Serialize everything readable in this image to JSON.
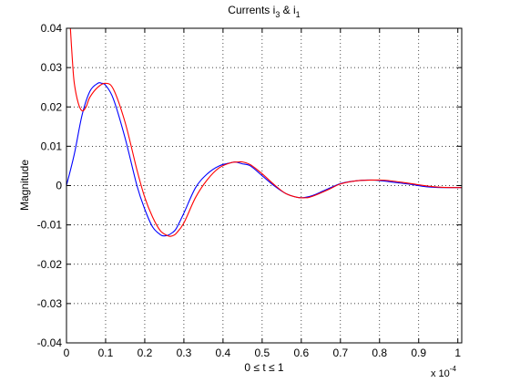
{
  "chart_data": {
    "type": "line",
    "title": {
      "main": "Currents i",
      "sub1": "3",
      "mid": " & i",
      "sub2": "1"
    },
    "xlabel": "0 ≤ t ≤ 1",
    "ylabel": "Magnitude",
    "x_multiplier": {
      "base": "x 10",
      "exponent": "-4"
    },
    "xlim": [
      0,
      1.01
    ],
    "ylim": [
      -0.04,
      0.04
    ],
    "xticks": [
      0,
      0.1,
      0.2,
      0.3,
      0.4,
      0.5,
      0.6,
      0.7,
      0.8,
      0.9,
      1
    ],
    "xtick_labels": [
      "0",
      "0.1",
      "0.2",
      "0.3",
      "0.4",
      "0.5",
      "0.6",
      "0.7",
      "0.8",
      "0.9",
      "1"
    ],
    "yticks": [
      -0.04,
      -0.03,
      -0.02,
      -0.01,
      0,
      0.01,
      0.02,
      0.03,
      0.04
    ],
    "ytick_labels": [
      "-0.04",
      "-0.03",
      "-0.02",
      "-0.01",
      "0",
      "0.01",
      "0.02",
      "0.03",
      "0.04"
    ],
    "grid": true,
    "series": [
      {
        "color": "#0000ff",
        "x": [
          0,
          0.02,
          0.04,
          0.06,
          0.08,
          0.09,
          0.1,
          0.12,
          0.15,
          0.18,
          0.2,
          0.22,
          0.24,
          0.25,
          0.26,
          0.27,
          0.28,
          0.3,
          0.33,
          0.36,
          0.39,
          0.42,
          0.43,
          0.44,
          0.45,
          0.47,
          0.5,
          0.53,
          0.56,
          0.59,
          0.61,
          0.63,
          0.66,
          0.7,
          0.74,
          0.77,
          0.8,
          0.84,
          0.88,
          0.92,
          0.96,
          1.0,
          1.01
        ],
        "y": [
          0,
          0.008,
          0.018,
          0.024,
          0.026,
          0.026,
          0.0255,
          0.022,
          0.012,
          0.0,
          -0.006,
          -0.0105,
          -0.0125,
          -0.0128,
          -0.0126,
          -0.012,
          -0.011,
          -0.007,
          -0.0005,
          0.003,
          0.005,
          0.0058,
          0.006,
          0.0058,
          0.0055,
          0.005,
          0.0025,
          0.0,
          -0.002,
          -0.003,
          -0.003,
          -0.0025,
          -0.0012,
          0.0005,
          0.0012,
          0.0014,
          0.0013,
          0.0008,
          0.0003,
          -0.0003,
          -0.0005,
          -0.0005,
          -0.0005
        ]
      },
      {
        "color": "#ff0000",
        "x": [
          0.01,
          0.015,
          0.02,
          0.03,
          0.04,
          0.05,
          0.06,
          0.08,
          0.1,
          0.12,
          0.15,
          0.18,
          0.2,
          0.22,
          0.24,
          0.26,
          0.27,
          0.28,
          0.3,
          0.33,
          0.36,
          0.39,
          0.42,
          0.44,
          0.45,
          0.47,
          0.5,
          0.53,
          0.56,
          0.59,
          0.61,
          0.62,
          0.64,
          0.67,
          0.7,
          0.74,
          0.78,
          0.8,
          0.82,
          0.86,
          0.9,
          0.94,
          0.98,
          1.01
        ],
        "y": [
          0.04,
          0.032,
          0.026,
          0.021,
          0.019,
          0.02,
          0.0225,
          0.025,
          0.026,
          0.0245,
          0.016,
          0.004,
          -0.003,
          -0.008,
          -0.0115,
          -0.0128,
          -0.0128,
          -0.0122,
          -0.0095,
          -0.003,
          0.0015,
          0.0045,
          0.0058,
          0.006,
          0.006,
          0.0053,
          0.003,
          0.0003,
          -0.002,
          -0.003,
          -0.0031,
          -0.003,
          -0.0023,
          -0.001,
          0.0004,
          0.0012,
          0.0014,
          0.0014,
          0.0013,
          0.0008,
          0.0002,
          -0.0003,
          -0.0005,
          -0.0005
        ]
      }
    ]
  }
}
